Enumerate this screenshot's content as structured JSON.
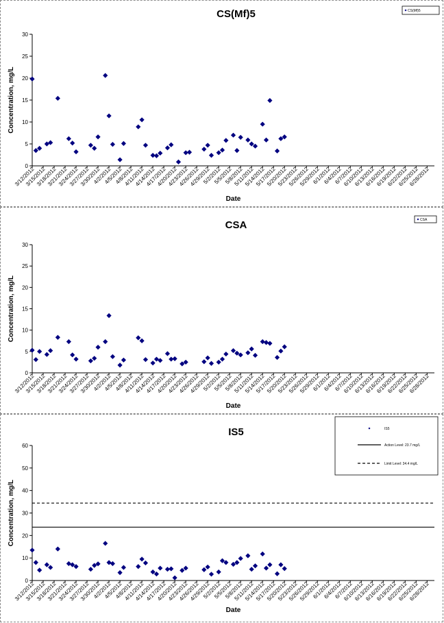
{
  "chart_data": [
    {
      "type": "scatter",
      "title": "CS(Mf)5",
      "xlabel": "Date",
      "ylabel": "Concentration, mg/L",
      "ylim": [
        0,
        30
      ],
      "yticks": [
        0,
        5,
        10,
        15,
        20,
        25,
        30
      ],
      "grid": false,
      "legend_position": "top-right",
      "legend": [
        "CS(Mf)5"
      ],
      "xticks": [
        "3/12/2012",
        "3/15/2012",
        "3/18/2012",
        "3/21/2012",
        "3/24/2012",
        "3/27/2012",
        "3/30/2012",
        "4/2/2012",
        "4/5/2012",
        "4/8/2012",
        "4/11/2012",
        "4/14/2012",
        "4/17/2012",
        "4/20/2012",
        "4/23/2012",
        "4/26/2012",
        "4/29/2012",
        "5/2/2012",
        "5/5/2012",
        "5/8/2012",
        "5/11/2012",
        "5/14/2012",
        "5/17/2012",
        "5/20/2012",
        "5/23/2012",
        "5/26/2012",
        "5/29/2012",
        "6/1/2012",
        "6/4/2012",
        "6/7/2012",
        "6/10/2012",
        "6/13/2012",
        "6/16/2012",
        "6/19/2012",
        "6/22/2012",
        "6/25/2012",
        "6/28/2012"
      ],
      "xlim": [
        "3/12/2012",
        "6/30/2012"
      ],
      "series": [
        {
          "name": "CS(Mf)5",
          "color": "#000080",
          "marker": "diamond",
          "points": [
            [
              "3/12/2012",
              19.8
            ],
            [
              "3/13/2012",
              3.5
            ],
            [
              "3/14/2012",
              4.0
            ],
            [
              "3/16/2012",
              5.0
            ],
            [
              "3/17/2012",
              5.3
            ],
            [
              "3/19/2012",
              15.4
            ],
            [
              "3/22/2012",
              6.2
            ],
            [
              "3/23/2012",
              5.2
            ],
            [
              "3/24/2012",
              3.2
            ],
            [
              "3/28/2012",
              4.7
            ],
            [
              "3/29/2012",
              4.0
            ],
            [
              "3/30/2012",
              6.6
            ],
            [
              "4/1/2012",
              20.6
            ],
            [
              "4/2/2012",
              11.4
            ],
            [
              "4/3/2012",
              4.9
            ],
            [
              "4/5/2012",
              1.4
            ],
            [
              "4/6/2012",
              5.1
            ],
            [
              "4/10/2012",
              8.9
            ],
            [
              "4/11/2012",
              10.5
            ],
            [
              "4/12/2012",
              4.7
            ],
            [
              "4/14/2012",
              2.4
            ],
            [
              "4/15/2012",
              2.3
            ],
            [
              "4/16/2012",
              2.9
            ],
            [
              "4/18/2012",
              4.1
            ],
            [
              "4/19/2012",
              4.8
            ],
            [
              "4/21/2012",
              0.9
            ],
            [
              "4/23/2012",
              3.0
            ],
            [
              "4/24/2012",
              3.1
            ],
            [
              "4/28/2012",
              3.8
            ],
            [
              "4/29/2012",
              4.7
            ],
            [
              "4/30/2012",
              2.4
            ],
            [
              "5/2/2012",
              3.0
            ],
            [
              "5/3/2012",
              3.6
            ],
            [
              "5/4/2012",
              5.8
            ],
            [
              "5/6/2012",
              7.0
            ],
            [
              "5/7/2012",
              3.5
            ],
            [
              "5/8/2012",
              6.5
            ],
            [
              "5/10/2012",
              5.9
            ],
            [
              "5/11/2012",
              5.0
            ],
            [
              "5/12/2012",
              4.5
            ],
            [
              "5/14/2012",
              9.5
            ],
            [
              "5/15/2012",
              5.9
            ],
            [
              "5/16/2012",
              14.9
            ],
            [
              "5/18/2012",
              3.4
            ],
            [
              "5/19/2012",
              6.2
            ],
            [
              "5/20/2012",
              6.6
            ]
          ]
        }
      ]
    },
    {
      "type": "scatter",
      "title": "CSA",
      "xlabel": "Date",
      "ylabel": "Concentration, mg/L",
      "ylim": [
        0,
        30
      ],
      "yticks": [
        0,
        5,
        10,
        15,
        20,
        25,
        30
      ],
      "grid": false,
      "legend_position": "top-right",
      "legend": [
        "CSA"
      ],
      "xticks": [
        "3/12/2012",
        "3/15/2012",
        "3/18/2012",
        "3/21/2012",
        "3/24/2012",
        "3/27/2012",
        "3/30/2012",
        "4/2/2012",
        "4/5/2012",
        "4/8/2012",
        "4/11/2012",
        "4/14/2012",
        "4/17/2012",
        "4/20/2012",
        "4/23/2012",
        "4/26/2012",
        "4/29/2012",
        "5/2/2012",
        "5/5/2012",
        "5/8/2012",
        "5/11/2012",
        "5/14/2012",
        "5/17/2012",
        "5/20/2012",
        "5/23/2012",
        "5/26/2012",
        "5/29/2012",
        "6/1/2012",
        "6/4/2012",
        "6/7/2012",
        "6/10/2012",
        "6/13/2012",
        "6/16/2012",
        "6/19/2012",
        "6/22/2012",
        "6/25/2012",
        "6/28/2012"
      ],
      "xlim": [
        "3/12/2012",
        "6/30/2012"
      ],
      "series": [
        {
          "name": "CSA",
          "color": "#000080",
          "marker": "diamond",
          "points": [
            [
              "3/12/2012",
              5.3
            ],
            [
              "3/13/2012",
              3.1
            ],
            [
              "3/14/2012",
              5.0
            ],
            [
              "3/16/2012",
              4.3
            ],
            [
              "3/17/2012",
              5.2
            ],
            [
              "3/19/2012",
              8.3
            ],
            [
              "3/22/2012",
              7.3
            ],
            [
              "3/23/2012",
              4.2
            ],
            [
              "3/24/2012",
              3.2
            ],
            [
              "3/28/2012",
              2.8
            ],
            [
              "3/29/2012",
              3.4
            ],
            [
              "3/30/2012",
              6.0
            ],
            [
              "4/1/2012",
              7.3
            ],
            [
              "4/2/2012",
              13.4
            ],
            [
              "4/3/2012",
              3.8
            ],
            [
              "4/5/2012",
              1.8
            ],
            [
              "4/6/2012",
              3.0
            ],
            [
              "4/10/2012",
              8.2
            ],
            [
              "4/11/2012",
              7.5
            ],
            [
              "4/12/2012",
              3.1
            ],
            [
              "4/14/2012",
              2.3
            ],
            [
              "4/15/2012",
              3.2
            ],
            [
              "4/16/2012",
              2.9
            ],
            [
              "4/18/2012",
              4.5
            ],
            [
              "4/19/2012",
              3.2
            ],
            [
              "4/20/2012",
              3.3
            ],
            [
              "4/22/2012",
              2.1
            ],
            [
              "4/23/2012",
              2.5
            ],
            [
              "4/28/2012",
              2.6
            ],
            [
              "4/29/2012",
              3.5
            ],
            [
              "4/30/2012",
              2.2
            ],
            [
              "5/2/2012",
              2.5
            ],
            [
              "5/3/2012",
              3.2
            ],
            [
              "5/4/2012",
              4.4
            ],
            [
              "5/6/2012",
              5.2
            ],
            [
              "5/7/2012",
              4.6
            ],
            [
              "5/8/2012",
              4.2
            ],
            [
              "5/10/2012",
              4.7
            ],
            [
              "5/11/2012",
              5.6
            ],
            [
              "5/12/2012",
              4.1
            ],
            [
              "5/14/2012",
              7.3
            ],
            [
              "5/15/2012",
              7.1
            ],
            [
              "5/16/2012",
              6.9
            ],
            [
              "5/18/2012",
              3.6
            ],
            [
              "5/19/2012",
              5.1
            ],
            [
              "5/20/2012",
              6.1
            ]
          ]
        }
      ]
    },
    {
      "type": "scatter",
      "title": "IS5",
      "xlabel": "Date",
      "ylabel": "Concentration, mg/L",
      "ylim": [
        0,
        60
      ],
      "yticks": [
        0,
        10,
        20,
        30,
        40,
        50,
        60
      ],
      "grid": false,
      "legend_position": "top-right",
      "legend": [
        "IS5",
        "Action Level: 23.7 mg/L",
        "Limit Level: 34.4 mg/L"
      ],
      "reference_lines": [
        {
          "label": "Action Level: 23.7 mg/L",
          "value": 23.7,
          "style": "solid"
        },
        {
          "label": "Limit Level: 34.4 mg/L",
          "value": 34.4,
          "style": "dashed"
        }
      ],
      "xticks": [
        "3/12/2012",
        "3/15/2012",
        "3/18/2012",
        "3/21/2012",
        "3/24/2012",
        "3/27/2012",
        "3/30/2012",
        "4/2/2012",
        "4/5/2012",
        "4/8/2012",
        "4/11/2012",
        "4/14/2012",
        "4/17/2012",
        "4/20/2012",
        "4/23/2012",
        "4/26/2012",
        "4/29/2012",
        "5/2/2012",
        "5/5/2012",
        "5/8/2012",
        "5/11/2012",
        "5/14/2012",
        "5/17/2012",
        "5/20/2012",
        "5/23/2012",
        "5/26/2012",
        "5/29/2012",
        "6/1/2012",
        "6/4/2012",
        "6/7/2012",
        "6/10/2012",
        "6/13/2012",
        "6/16/2012",
        "6/19/2012",
        "6/22/2012",
        "6/25/2012",
        "6/28/2012"
      ],
      "xlim": [
        "3/12/2012",
        "6/30/2012"
      ],
      "series": [
        {
          "name": "IS5",
          "color": "#000080",
          "marker": "diamond",
          "points": [
            [
              "3/12/2012",
              13.5
            ],
            [
              "3/13/2012",
              8.0
            ],
            [
              "3/14/2012",
              4.6
            ],
            [
              "3/16/2012",
              7.0
            ],
            [
              "3/17/2012",
              5.8
            ],
            [
              "3/19/2012",
              14.0
            ],
            [
              "3/22/2012",
              7.5
            ],
            [
              "3/23/2012",
              7.0
            ],
            [
              "3/24/2012",
              6.2
            ],
            [
              "3/28/2012",
              5.0
            ],
            [
              "3/29/2012",
              6.7
            ],
            [
              "3/30/2012",
              7.4
            ],
            [
              "4/1/2012",
              16.5
            ],
            [
              "4/2/2012",
              8.0
            ],
            [
              "4/3/2012",
              7.5
            ],
            [
              "4/5/2012",
              3.5
            ],
            [
              "4/6/2012",
              5.8
            ],
            [
              "4/10/2012",
              6.2
            ],
            [
              "4/11/2012",
              9.5
            ],
            [
              "4/12/2012",
              7.8
            ],
            [
              "4/14/2012",
              3.8
            ],
            [
              "4/15/2012",
              2.9
            ],
            [
              "4/16/2012",
              5.5
            ],
            [
              "4/18/2012",
              5.0
            ],
            [
              "4/19/2012",
              5.2
            ],
            [
              "4/20/2012",
              1.2
            ],
            [
              "4/22/2012",
              4.5
            ],
            [
              "4/23/2012",
              5.5
            ],
            [
              "4/28/2012",
              4.8
            ],
            [
              "4/29/2012",
              6.0
            ],
            [
              "4/30/2012",
              2.8
            ],
            [
              "5/2/2012",
              3.8
            ],
            [
              "5/3/2012",
              8.8
            ],
            [
              "5/4/2012",
              8.0
            ],
            [
              "5/6/2012",
              7.2
            ],
            [
              "5/7/2012",
              8.0
            ],
            [
              "5/8/2012",
              9.8
            ],
            [
              "5/10/2012",
              11.0
            ],
            [
              "5/11/2012",
              5.0
            ],
            [
              "5/12/2012",
              6.5
            ],
            [
              "5/14/2012",
              11.8
            ],
            [
              "5/15/2012",
              5.5
            ],
            [
              "5/16/2012",
              7.0
            ],
            [
              "5/18/2012",
              3.0
            ],
            [
              "5/19/2012",
              7.0
            ],
            [
              "5/20/2012",
              5.3
            ]
          ]
        }
      ]
    }
  ]
}
